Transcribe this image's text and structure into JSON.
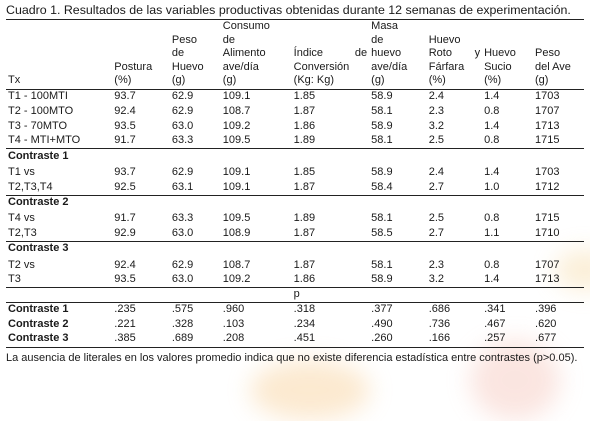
{
  "caption": "Cuadro 1. Resultados de las variables productivas obtenidas durante 12 semanas de experimentación.",
  "headers": {
    "tx": "Tx",
    "columns": [
      {
        "lines": [
          "Postura"
        ],
        "unit": "(%)"
      },
      {
        "lines": [
          "Peso",
          "de",
          "Huevo"
        ],
        "unit": "(g)"
      },
      {
        "lines": [
          "Consumo",
          "de",
          "Alimento",
          "ave/día"
        ],
        "unit": "(g)"
      },
      {
        "lines": [
          "Índice de",
          "Conversión"
        ],
        "unit": "(Kg: Kg)"
      },
      {
        "lines": [
          "Masa",
          "de",
          "huevo",
          "ave/día"
        ],
        "unit": "(g)"
      },
      {
        "lines": [
          "Huevo",
          "Roto y",
          "Fárfara"
        ],
        "unit": "(%)"
      },
      {
        "lines": [
          "Huevo",
          "Sucio"
        ],
        "unit": "(%)"
      },
      {
        "lines": [
          "Peso",
          "del Ave"
        ],
        "unit": "(g)"
      }
    ]
  },
  "treatments": [
    {
      "label": "T1 - 100MTI",
      "values": [
        "93.7",
        "62.9",
        "109.1",
        "1.85",
        "58.9",
        "2.4",
        "1.4",
        "1703"
      ]
    },
    {
      "label": "T2 - 100MTO",
      "values": [
        "92.4",
        "62.9",
        "108.7",
        "1.87",
        "58.1",
        "2.3",
        "0.8",
        "1707"
      ]
    },
    {
      "label": "T3 - 70MTO",
      "values": [
        "93.5",
        "63.0",
        "109.2",
        "1.86",
        "58.9",
        "3.2",
        "1.4",
        "1713"
      ]
    },
    {
      "label": "T4 - MTI+MTO",
      "values": [
        "91.7",
        "63.3",
        "109.5",
        "1.89",
        "58.1",
        "2.5",
        "0.8",
        "1715"
      ]
    }
  ],
  "contrasts": [
    {
      "title": "Contraste 1",
      "rows": [
        {
          "label": "T1 vs",
          "values": [
            "93.7",
            "62.9",
            "109.1",
            "1.85",
            "58.9",
            "2.4",
            "1.4",
            "1703"
          ]
        },
        {
          "label": "T2,T3,T4",
          "values": [
            "92.5",
            "63.1",
            "109.1",
            "1.87",
            "58.4",
            "2.7",
            "1.0",
            "1712"
          ]
        }
      ]
    },
    {
      "title": "Contraste 2",
      "rows": [
        {
          "label": "T4 vs",
          "values": [
            "91.7",
            "63.3",
            "109.5",
            "1.89",
            "58.1",
            "2.5",
            "0.8",
            "1715"
          ]
        },
        {
          "label": "T2,T3",
          "values": [
            "92.9",
            "63.0",
            "108.9",
            "1.87",
            "58.5",
            "2.7",
            "1.1",
            "1710"
          ]
        }
      ]
    },
    {
      "title": "Contraste 3",
      "rows": [
        {
          "label": "T2 vs",
          "values": [
            "92.4",
            "62.9",
            "108.7",
            "1.87",
            "58.1",
            "2.3",
            "0.8",
            "1707"
          ]
        },
        {
          "label": "T3",
          "values": [
            "93.5",
            "63.0",
            "109.2",
            "1.86",
            "58.9",
            "3.2",
            "1.4",
            "1713"
          ]
        }
      ]
    }
  ],
  "p_label": "p",
  "p_values": [
    {
      "label": "Contraste 1",
      "values": [
        ".235",
        ".575",
        ".960",
        ".318",
        ".377",
        ".686",
        ".341",
        ".396"
      ]
    },
    {
      "label": "Contraste 2",
      "values": [
        ".221",
        ".328",
        ".103",
        ".234",
        ".490",
        ".736",
        ".467",
        ".620"
      ]
    },
    {
      "label": "Contraste 3",
      "values": [
        ".385",
        ".689",
        ".208",
        ".451",
        ".260",
        ".166",
        ".257",
        ".677"
      ]
    }
  ],
  "footnote": "La ausencia de literales en los valores promedio indica que no existe diferencia estadística entre contrastes (p>0.05)."
}
